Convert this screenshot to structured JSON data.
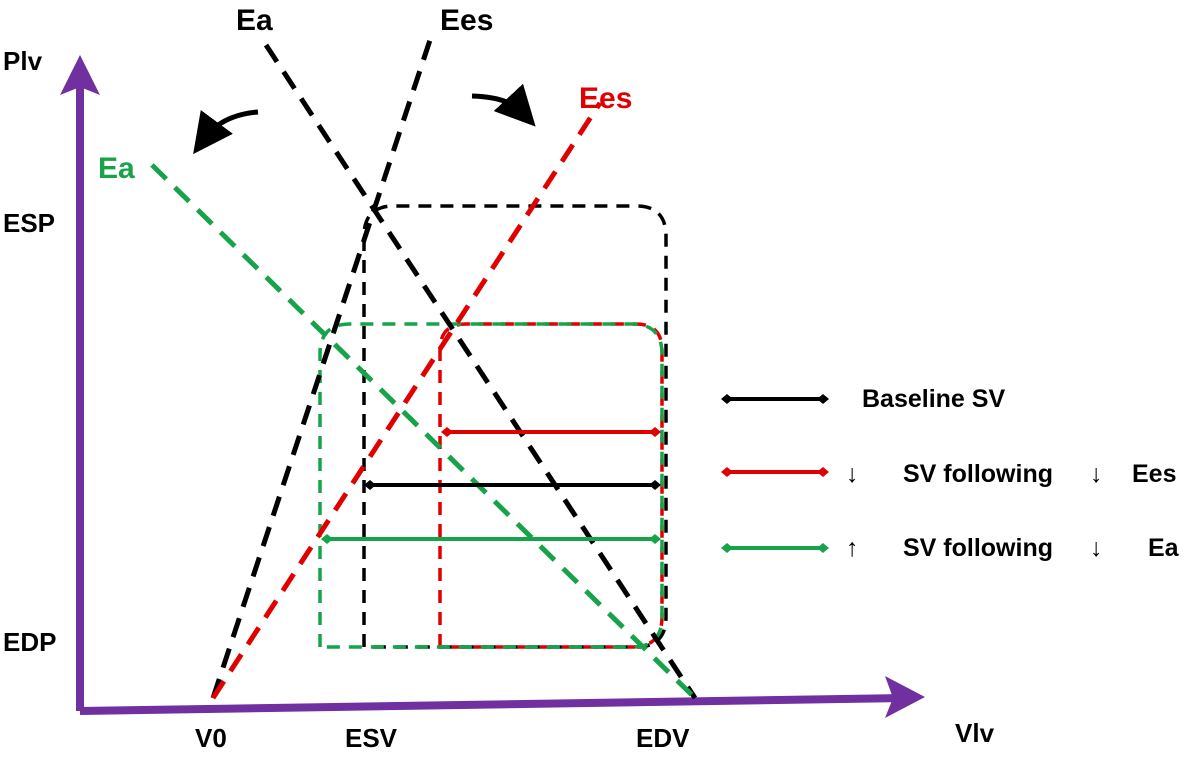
{
  "colors": {
    "baseline": "#000000",
    "ees": "#e00000",
    "ea": "#17a34a",
    "axis": "#7030a0"
  },
  "axes": {
    "y_label": "Plv",
    "x_label": "Vlv",
    "y_ticks": {
      "esp": "ESP",
      "edp": "EDP"
    },
    "x_ticks": {
      "v0": "V0",
      "esv": "ESV",
      "edv": "EDV"
    }
  },
  "lines": {
    "ea_black": "Ea",
    "ees_black": "Ees",
    "ees_red": "Ees",
    "ea_green": "Ea"
  },
  "legend": {
    "baseline": "Baseline SV",
    "ees_arrow": "↓",
    "ees_text": "SV following",
    "ees_arrow2": "↓",
    "ees_param": "Ees",
    "ea_arrow": "↑",
    "ea_text": "SV following",
    "ea_arrow2": "↓",
    "ea_param": "Ea"
  }
}
